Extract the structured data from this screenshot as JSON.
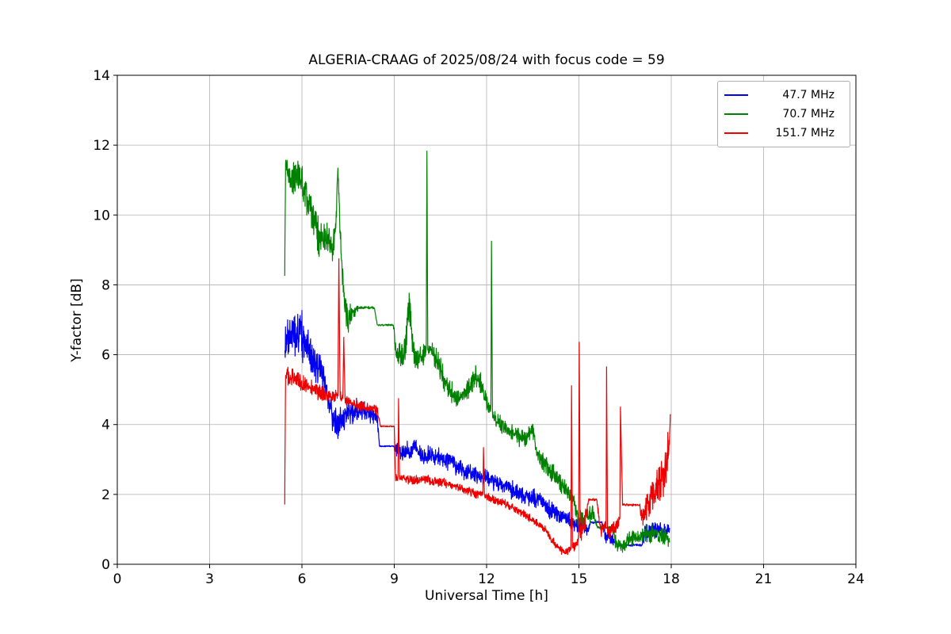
{
  "chart_data": {
    "type": "line",
    "title": "ALGERIA-CRAAG of 2025/08/24 with focus code = 59",
    "xlabel": "Universal Time [h]",
    "ylabel": "Y-factor [dB]",
    "xlim": [
      0,
      24
    ],
    "ylim": [
      0,
      14
    ],
    "xticks": [
      0,
      3,
      6,
      9,
      12,
      15,
      18,
      21,
      24
    ],
    "yticks": [
      0,
      2,
      4,
      6,
      8,
      10,
      12,
      14
    ],
    "grid": true,
    "legend_position": "upper right",
    "colors": {
      "grid": "#b0b0b0",
      "axis": "#000000",
      "background": "#ffffff"
    },
    "series": [
      {
        "name": "47.7 MHz",
        "color": "#0000ee",
        "keypoints": [
          [
            5.45,
            6.2,
            0.9
          ],
          [
            5.6,
            6.5,
            0.8
          ],
          [
            5.8,
            6.6,
            0.8
          ],
          [
            6.0,
            6.5,
            0.8
          ],
          [
            6.2,
            6.3,
            0.7
          ],
          [
            6.45,
            5.5,
            0.6
          ],
          [
            6.6,
            5.7,
            0.5
          ],
          [
            6.8,
            5.0,
            0.5
          ],
          [
            7.0,
            4.2,
            0.5
          ],
          [
            7.2,
            4.0,
            0.5
          ],
          [
            7.4,
            4.2,
            0.45
          ],
          [
            7.7,
            4.4,
            0.4
          ],
          [
            8.0,
            4.4,
            0.35
          ],
          [
            8.3,
            4.3,
            0.35
          ],
          [
            8.45,
            4.2,
            0.3
          ],
          [
            8.52,
            3.38,
            0.02
          ],
          [
            8.98,
            3.38,
            0.02
          ],
          [
            9.05,
            3.25,
            0.3
          ],
          [
            9.3,
            3.2,
            0.3
          ],
          [
            9.6,
            3.35,
            0.35
          ],
          [
            9.9,
            3.15,
            0.3
          ],
          [
            10.2,
            3.1,
            0.3
          ],
          [
            10.5,
            3.05,
            0.3
          ],
          [
            10.8,
            2.95,
            0.3
          ],
          [
            11.1,
            2.75,
            0.3
          ],
          [
            11.4,
            2.6,
            0.3
          ],
          [
            11.7,
            2.55,
            0.3
          ],
          [
            12.0,
            2.5,
            0.3
          ],
          [
            12.3,
            2.35,
            0.3
          ],
          [
            12.6,
            2.25,
            0.3
          ],
          [
            12.9,
            2.1,
            0.3
          ],
          [
            13.2,
            2.0,
            0.3
          ],
          [
            13.5,
            1.9,
            0.3
          ],
          [
            13.8,
            1.75,
            0.3
          ],
          [
            14.1,
            1.55,
            0.3
          ],
          [
            14.4,
            1.4,
            0.28
          ],
          [
            14.7,
            1.25,
            0.28
          ],
          [
            15.0,
            1.1,
            0.28
          ],
          [
            15.25,
            1.0,
            0.25
          ],
          [
            15.4,
            1.2,
            0.04
          ],
          [
            15.75,
            1.2,
            0.04
          ],
          [
            15.85,
            0.85,
            0.25
          ],
          [
            16.1,
            0.7,
            0.2
          ],
          [
            16.25,
            0.55,
            0.04
          ],
          [
            17.05,
            0.55,
            0.04
          ],
          [
            17.15,
            0.9,
            0.3
          ],
          [
            17.4,
            1.0,
            0.3
          ],
          [
            17.6,
            0.95,
            0.3
          ],
          [
            17.8,
            0.9,
            0.3
          ],
          [
            17.95,
            1.0,
            0.15
          ]
        ]
      },
      {
        "name": "70.7 MHz",
        "color": "#008000",
        "keypoints": [
          [
            5.44,
            8.3,
            0.05
          ],
          [
            5.47,
            11.5,
            0.3
          ],
          [
            5.6,
            11.1,
            0.5
          ],
          [
            5.75,
            11.0,
            0.6
          ],
          [
            5.9,
            11.2,
            0.6
          ],
          [
            6.0,
            10.9,
            0.6
          ],
          [
            6.2,
            10.4,
            0.6
          ],
          [
            6.4,
            9.9,
            0.6
          ],
          [
            6.6,
            9.2,
            0.8
          ],
          [
            6.8,
            9.4,
            0.5
          ],
          [
            7.0,
            9.1,
            0.5
          ],
          [
            7.1,
            9.6,
            0.5
          ],
          [
            7.17,
            11.3,
            0.15
          ],
          [
            7.25,
            9.2,
            0.5
          ],
          [
            7.35,
            7.8,
            0.6
          ],
          [
            7.5,
            7.0,
            0.5
          ],
          [
            7.65,
            7.2,
            0.3
          ],
          [
            7.85,
            7.35,
            0.04
          ],
          [
            8.35,
            7.35,
            0.04
          ],
          [
            8.45,
            6.85,
            0.03
          ],
          [
            8.97,
            6.85,
            0.03
          ],
          [
            9.05,
            6.2,
            0.4
          ],
          [
            9.2,
            5.9,
            0.4
          ],
          [
            9.35,
            6.3,
            0.5
          ],
          [
            9.5,
            7.2,
            0.8
          ],
          [
            9.62,
            6.0,
            0.4
          ],
          [
            9.8,
            5.9,
            0.4
          ],
          [
            10.0,
            6.1,
            0.35
          ],
          [
            10.04,
            6.1,
            0.1
          ],
          [
            10.06,
            11.85,
            0.03
          ],
          [
            10.09,
            6.2,
            0.2
          ],
          [
            10.3,
            5.95,
            0.4
          ],
          [
            10.5,
            5.6,
            0.4
          ],
          [
            10.7,
            5.1,
            0.4
          ],
          [
            10.9,
            4.85,
            0.35
          ],
          [
            11.1,
            4.7,
            0.35
          ],
          [
            11.3,
            4.95,
            0.35
          ],
          [
            11.5,
            5.15,
            0.4
          ],
          [
            11.7,
            5.4,
            0.4
          ],
          [
            11.9,
            5.0,
            0.4
          ],
          [
            12.05,
            4.5,
            0.3
          ],
          [
            12.14,
            4.4,
            0.1
          ],
          [
            12.16,
            9.25,
            0.03
          ],
          [
            12.19,
            4.3,
            0.2
          ],
          [
            12.4,
            4.05,
            0.3
          ],
          [
            12.7,
            3.85,
            0.3
          ],
          [
            13.0,
            3.65,
            0.3
          ],
          [
            13.3,
            3.55,
            0.3
          ],
          [
            13.5,
            3.9,
            0.35
          ],
          [
            13.65,
            3.1,
            0.3
          ],
          [
            13.9,
            2.85,
            0.3
          ],
          [
            14.2,
            2.55,
            0.3
          ],
          [
            14.5,
            2.25,
            0.3
          ],
          [
            14.8,
            1.85,
            0.3
          ],
          [
            15.0,
            1.3,
            0.3
          ],
          [
            15.2,
            1.35,
            0.3
          ],
          [
            15.45,
            1.45,
            0.3
          ],
          [
            15.6,
            1.05,
            0.04
          ],
          [
            16.1,
            1.05,
            0.04
          ],
          [
            16.2,
            0.6,
            0.25
          ],
          [
            16.4,
            0.5,
            0.22
          ],
          [
            16.6,
            0.7,
            0.25
          ],
          [
            16.9,
            0.75,
            0.25
          ],
          [
            17.2,
            0.9,
            0.3
          ],
          [
            17.5,
            0.85,
            0.3
          ],
          [
            17.8,
            0.8,
            0.3
          ],
          [
            17.95,
            0.65,
            0.15
          ]
        ]
      },
      {
        "name": "151.7 MHz",
        "color": "#ee0000",
        "keypoints": [
          [
            5.44,
            1.7,
            0.03
          ],
          [
            5.47,
            5.5,
            0.3
          ],
          [
            5.6,
            5.35,
            0.3
          ],
          [
            5.8,
            5.3,
            0.3
          ],
          [
            6.0,
            5.2,
            0.28
          ],
          [
            6.2,
            5.1,
            0.28
          ],
          [
            6.4,
            5.0,
            0.26
          ],
          [
            6.6,
            4.9,
            0.25
          ],
          [
            6.8,
            4.85,
            0.25
          ],
          [
            7.0,
            4.8,
            0.22
          ],
          [
            7.17,
            4.85,
            0.2
          ],
          [
            7.2,
            8.75,
            0.03
          ],
          [
            7.24,
            4.8,
            0.2
          ],
          [
            7.33,
            4.75,
            0.15
          ],
          [
            7.36,
            6.5,
            0.03
          ],
          [
            7.4,
            4.7,
            0.18
          ],
          [
            7.6,
            4.6,
            0.2
          ],
          [
            7.9,
            4.5,
            0.2
          ],
          [
            8.2,
            4.45,
            0.2
          ],
          [
            8.45,
            4.4,
            0.18
          ],
          [
            8.55,
            3.95,
            0.02
          ],
          [
            9.0,
            3.95,
            0.02
          ],
          [
            9.04,
            2.45,
            0.15
          ],
          [
            9.12,
            2.5,
            0.12
          ],
          [
            9.14,
            4.75,
            0.03
          ],
          [
            9.17,
            2.5,
            0.12
          ],
          [
            9.35,
            2.45,
            0.15
          ],
          [
            9.6,
            2.4,
            0.15
          ],
          [
            9.9,
            2.45,
            0.15
          ],
          [
            10.2,
            2.4,
            0.15
          ],
          [
            10.5,
            2.35,
            0.14
          ],
          [
            10.8,
            2.3,
            0.14
          ],
          [
            11.1,
            2.2,
            0.14
          ],
          [
            11.4,
            2.1,
            0.14
          ],
          [
            11.7,
            2.0,
            0.14
          ],
          [
            11.88,
            2.0,
            0.1
          ],
          [
            11.9,
            3.35,
            0.03
          ],
          [
            11.93,
            1.95,
            0.12
          ],
          [
            12.1,
            1.9,
            0.14
          ],
          [
            12.4,
            1.8,
            0.14
          ],
          [
            12.7,
            1.7,
            0.14
          ],
          [
            13.0,
            1.55,
            0.14
          ],
          [
            13.3,
            1.4,
            0.14
          ],
          [
            13.6,
            1.2,
            0.14
          ],
          [
            13.9,
            1.0,
            0.14
          ],
          [
            14.1,
            0.7,
            0.14
          ],
          [
            14.3,
            0.5,
            0.13
          ],
          [
            14.5,
            0.35,
            0.13
          ],
          [
            14.68,
            0.4,
            0.12
          ],
          [
            14.74,
            0.45,
            0.05
          ],
          [
            14.76,
            5.1,
            0.03
          ],
          [
            14.79,
            0.5,
            0.15
          ],
          [
            14.95,
            0.55,
            0.2
          ],
          [
            14.99,
            0.8,
            0.1
          ],
          [
            15.01,
            6.35,
            0.03
          ],
          [
            15.04,
            0.9,
            0.3
          ],
          [
            15.2,
            1.2,
            0.4
          ],
          [
            15.32,
            1.85,
            0.04
          ],
          [
            15.58,
            1.85,
            0.04
          ],
          [
            15.7,
            1.0,
            0.35
          ],
          [
            15.88,
            1.1,
            0.1
          ],
          [
            15.9,
            5.65,
            0.03
          ],
          [
            15.93,
            1.0,
            0.2
          ],
          [
            16.05,
            0.9,
            0.3
          ],
          [
            16.2,
            1.1,
            0.4
          ],
          [
            16.33,
            1.3,
            0.1
          ],
          [
            16.35,
            4.5,
            0.03
          ],
          [
            16.42,
            1.7,
            0.04
          ],
          [
            16.98,
            1.7,
            0.04
          ],
          [
            17.05,
            1.2,
            0.4
          ],
          [
            17.2,
            1.6,
            0.5
          ],
          [
            17.4,
            2.0,
            0.6
          ],
          [
            17.6,
            2.2,
            0.7
          ],
          [
            17.8,
            2.6,
            0.8
          ],
          [
            17.93,
            3.3,
            0.7
          ],
          [
            17.97,
            4.3,
            0.1
          ]
        ]
      }
    ]
  }
}
